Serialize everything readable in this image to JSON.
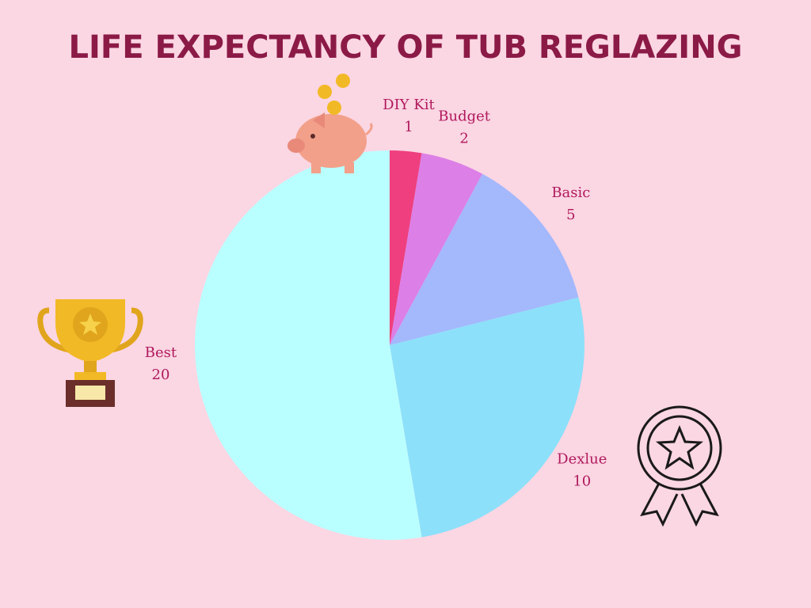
{
  "chart_data": {
    "type": "pie",
    "title": "LIFE EXPECTANCY OF TUB REGLAZING",
    "categories": [
      "DIY Kit",
      "Budget",
      "Basic",
      "Dexlue",
      "Best"
    ],
    "values": [
      1,
      2,
      5,
      10,
      20
    ],
    "colors": [
      "#ef3f7e",
      "#dc7fe6",
      "#a4b8fc",
      "#8ce0fa",
      "#baffff"
    ]
  }
}
